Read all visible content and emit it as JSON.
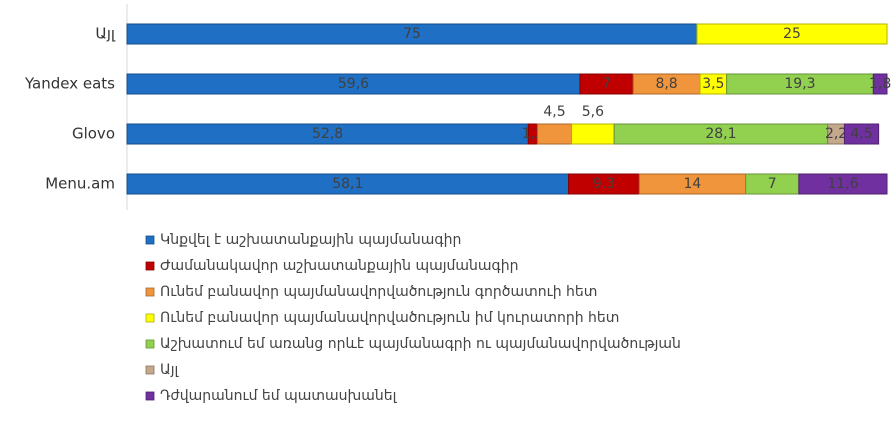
{
  "chart_data": {
    "type": "stacked-barh",
    "categories": [
      "Այլ",
      "Yandex eats",
      "Glovo",
      "Menu.am"
    ],
    "xlim": [
      0,
      100
    ],
    "series": [
      {
        "name": "Կնքվել է աշխատանքային պայմանագիր",
        "color": "#1f6fc5",
        "values": [
          75,
          59.6,
          52.8,
          58.1
        ],
        "value_labels": [
          "75",
          "59,6",
          "52,8",
          "58,1"
        ]
      },
      {
        "name": "Ժամանակավոր աշխատանքային պայմանագիր",
        "color": "#c00000",
        "values": [
          null,
          7,
          1.2,
          9.3
        ],
        "value_labels": [
          null,
          "7",
          "1,2",
          "9,3"
        ]
      },
      {
        "name": "Ունեմ բանավոր պայմանավորվածություն գործատուի հետ",
        "color": "#f0953c",
        "values": [
          null,
          8.8,
          4.5,
          14
        ],
        "value_labels": [
          null,
          "8,8",
          "4,5",
          "14"
        ]
      },
      {
        "name": "Ունեմ բանավոր պայմանավորվածություն իմ կուրատորի հետ",
        "color": "#ffff00",
        "values": [
          25,
          3.5,
          5.6,
          null
        ],
        "value_labels": [
          "25",
          "3,5",
          "5,6",
          null
        ]
      },
      {
        "name": "Աշխատում եմ առանց որևէ պայմանագրի ու պայմանավորվածության",
        "color": "#92d050",
        "values": [
          null,
          19.3,
          28.1,
          7
        ],
        "value_labels": [
          null,
          "19,3",
          "28,1",
          "7"
        ]
      },
      {
        "name": "Այլ",
        "color": "#c4a88c",
        "values": [
          null,
          null,
          2.2,
          null
        ],
        "value_labels": [
          null,
          null,
          "2,2",
          null
        ]
      },
      {
        "name": "Դժվարանում եմ պատասխանել",
        "color": "#7030a0",
        "values": [
          null,
          1.8,
          4.5,
          11.6
        ],
        "value_labels": [
          null,
          "1,8",
          "4,5",
          "11,6"
        ]
      }
    ]
  }
}
